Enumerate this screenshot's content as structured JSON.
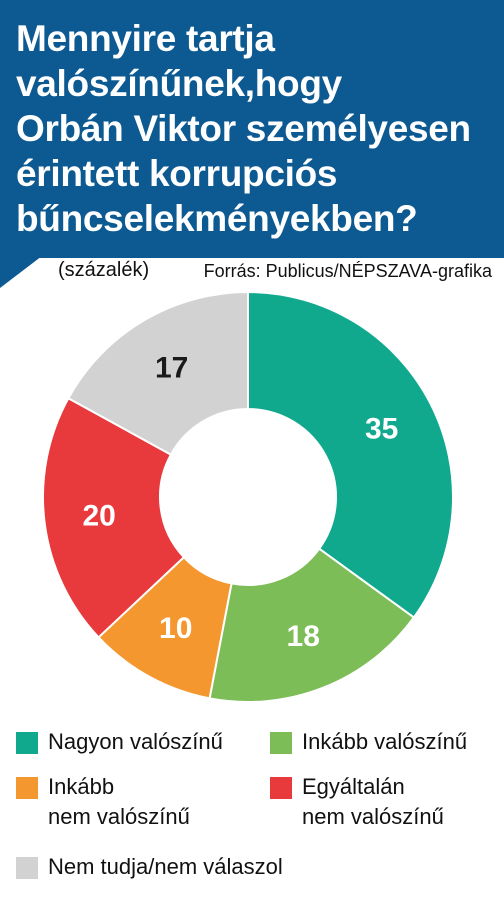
{
  "title_lines": [
    "Mennyire tartja",
    "valószínűnek,hogy",
    "Orbán Viktor személyesen",
    "érintett korrupciós",
    "bűncselekményekben?"
  ],
  "unit_label": "(százalék)",
  "source": "Forrás: Publicus/NÉPSZAVA-grafika",
  "colors": {
    "header": "#0d5a92",
    "nagyon": "#10a98e",
    "inkabb": "#7cbd57",
    "inkabb_nem": "#f5972f",
    "egyaltalan": "#e8393d",
    "nem_tudja": "#d2d2d2"
  },
  "chart_data": {
    "type": "pie",
    "style": "donut",
    "title": "Mennyire tartja valószínűnek,hogy Orbán Viktor személyesen érintett korrupciós bűncselekményekben?",
    "unit": "(százalék)",
    "categories": [
      "Nagyon valószínű",
      "Inkább valószínű",
      "Inkább nem valószínű",
      "Egyáltalán nem valószínű",
      "Nem tudja/nem válaszol"
    ],
    "values": [
      35,
      18,
      10,
      20,
      17
    ],
    "colors": [
      "#10a98e",
      "#7cbd57",
      "#f5972f",
      "#e8393d",
      "#d2d2d2"
    ],
    "label_colors": [
      "#ffffff",
      "#ffffff",
      "#ffffff",
      "#ffffff",
      "#1a1a1a"
    ],
    "start": "12 o'clock",
    "direction": "clockwise",
    "legend_position": "bottom"
  },
  "legend": [
    {
      "lines": [
        "Nagyon valószínű"
      ]
    },
    {
      "lines": [
        "Inkább valószínű"
      ]
    },
    {
      "lines": [
        "Inkább",
        "nem valószínű"
      ]
    },
    {
      "lines": [
        "Egyáltalán",
        "nem valószínű"
      ]
    },
    {
      "lines": [
        "Nem tudja/nem válaszol"
      ]
    }
  ]
}
